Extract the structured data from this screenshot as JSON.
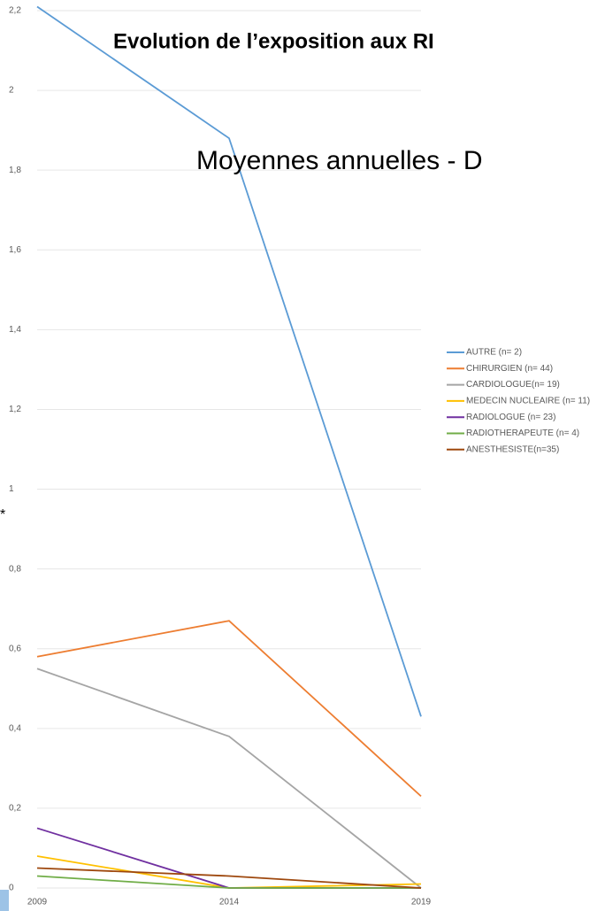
{
  "chart_data": {
    "type": "line",
    "title": "Evolution de l’exposition aux RI",
    "subtitle": "Moyennes annuelles - D",
    "annotation": "*",
    "categories": [
      "2009",
      "2014",
      "2019"
    ],
    "series": [
      {
        "name": "AUTRE (n= 2)",
        "color": "#5b9bd5",
        "values": [
          2.21,
          1.88,
          0.43
        ]
      },
      {
        "name": "CHIRURGIEN (n= 44)",
        "color": "#ed7d31",
        "values": [
          0.58,
          0.67,
          0.23
        ]
      },
      {
        "name": "CARDIOLOGUE(n= 19)",
        "color": "#a5a5a5",
        "values": [
          0.55,
          0.38,
          0
        ]
      },
      {
        "name": "MEDECIN NUCLEAIRE (n= 11)",
        "color": "#ffc000",
        "values": [
          0.08,
          0,
          0.01
        ]
      },
      {
        "name": "RADIOLOGUE (n= 23)",
        "color": "#7030a0",
        "values": [
          0.15,
          0,
          0
        ]
      },
      {
        "name": "RADIOTHERAPEUTE (n= 4)",
        "color": "#70ad47",
        "values": [
          0.03,
          0,
          0
        ]
      },
      {
        "name": "ANESTHESISTE(n=35)",
        "color": "#9e480e",
        "values": [
          0.05,
          0.03,
          0
        ]
      }
    ],
    "ylim": [
      0,
      2.2
    ],
    "yticks": [
      0,
      {
        "value": 0.2,
        "label": "0,2"
      },
      {
        "value": 0.4,
        "label": "0,4"
      },
      {
        "value": 0.6,
        "label": "0,6"
      },
      {
        "value": 0.8,
        "label": "0,8"
      },
      1,
      {
        "value": 1.2,
        "label": "1,2"
      },
      {
        "value": 1.4,
        "label": "1,4"
      },
      {
        "value": 1.6,
        "label": "1,6"
      },
      {
        "value": 1.8,
        "label": "1,8"
      },
      2,
      {
        "value": 2.2,
        "label": "2,2"
      }
    ],
    "grid": true,
    "legend": "right"
  }
}
